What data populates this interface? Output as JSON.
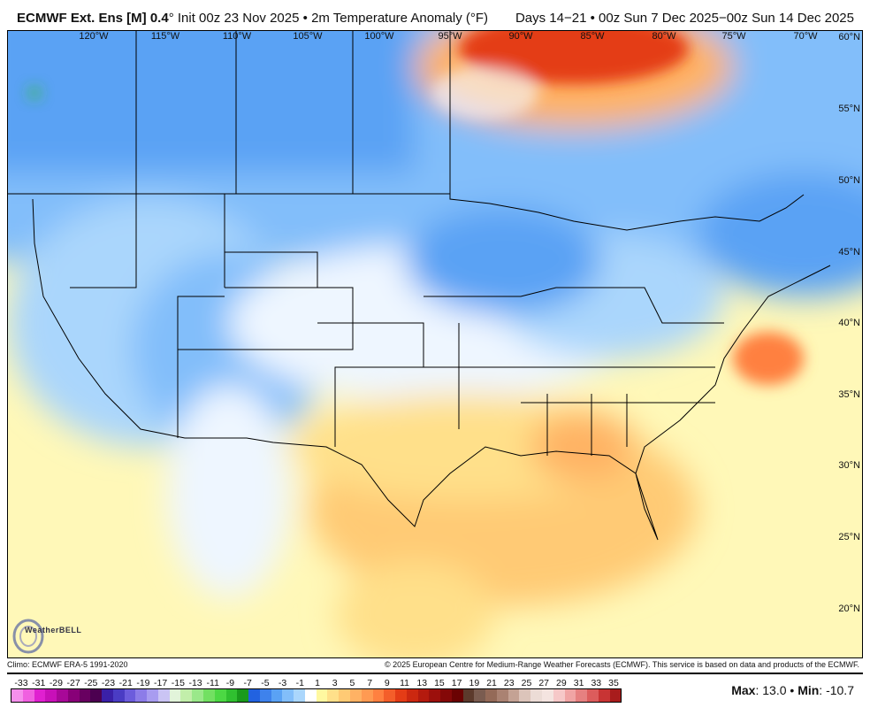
{
  "header": {
    "model": "ECMWF Ext. Ens [M] 0.4",
    "degree": "°",
    "init": "Init 00z 23 Nov 2025",
    "sep": "•",
    "variable": "2m Temperature Anomaly (°F)",
    "valid": "Days 14−21 • 00z Sun 7 Dec 2025−00z Sun 14 Dec 2025"
  },
  "map": {
    "longitude_labels": [
      "120°W",
      "115°W",
      "110°W",
      "105°W",
      "100°W",
      "95°W",
      "90°W",
      "85°W",
      "80°W",
      "75°W",
      "70°W"
    ],
    "latitude_labels": [
      "60°N",
      "55°N",
      "50°N",
      "45°N",
      "40°N",
      "35°N",
      "30°N",
      "25°N",
      "20°N"
    ],
    "logo": "WeatherBELL"
  },
  "footer": {
    "climo": "Climo: ECMWF ERA-5 1991-2020",
    "copyright": "© 2025 European Centre for Medium-Range Weather Forecasts (ECMWF). This service is based on data and products of the ECMWF."
  },
  "legend": {
    "labels": [
      "-33",
      "-31",
      "-29",
      "-27",
      "-25",
      "-23",
      "-21",
      "-19",
      "-17",
      "-15",
      "-13",
      "-11",
      "-9",
      "-7",
      "-5",
      "-3",
      "-1",
      "1",
      "3",
      "5",
      "7",
      "9",
      "11",
      "13",
      "15",
      "17",
      "19",
      "21",
      "23",
      "25",
      "27",
      "29",
      "31",
      "33",
      "35"
    ],
    "colors": [
      "#f590ec",
      "#f060e0",
      "#e020d0",
      "#c810b8",
      "#a80898",
      "#880078",
      "#680060",
      "#4c0050",
      "#3a20a8",
      "#4a3cc4",
      "#6c5cdc",
      "#8c7ce8",
      "#a89cf0",
      "#cac4f4",
      "#e2f4da",
      "#c2eeaa",
      "#9ae88a",
      "#72e062",
      "#4cd844",
      "#30c030",
      "#1a9a1c",
      "#2262e0",
      "#3e82ec",
      "#5aa2f4",
      "#82befa",
      "#aad6fc",
      "#ffffff",
      "#fff8a0",
      "#ffe08a",
      "#ffca74",
      "#ffb264",
      "#ff9a52",
      "#ff8040",
      "#f45e2a",
      "#e43c16",
      "#cc2810",
      "#b41a0e",
      "#9c100c",
      "#840808",
      "#6a0202",
      "#5c3a2c",
      "#7a5c50",
      "#946a58",
      "#aa8272",
      "#c4a294",
      "#dcc4ba",
      "#ecdcd6",
      "#f4e4e0",
      "#f6c8c8",
      "#f0a4a4",
      "#e68080",
      "#dc5c5c",
      "#c83434",
      "#a81c1c"
    ],
    "max_label": "Max",
    "max_value": ": 13.0",
    "min_label": "Min",
    "min_value": ": -10.7"
  }
}
